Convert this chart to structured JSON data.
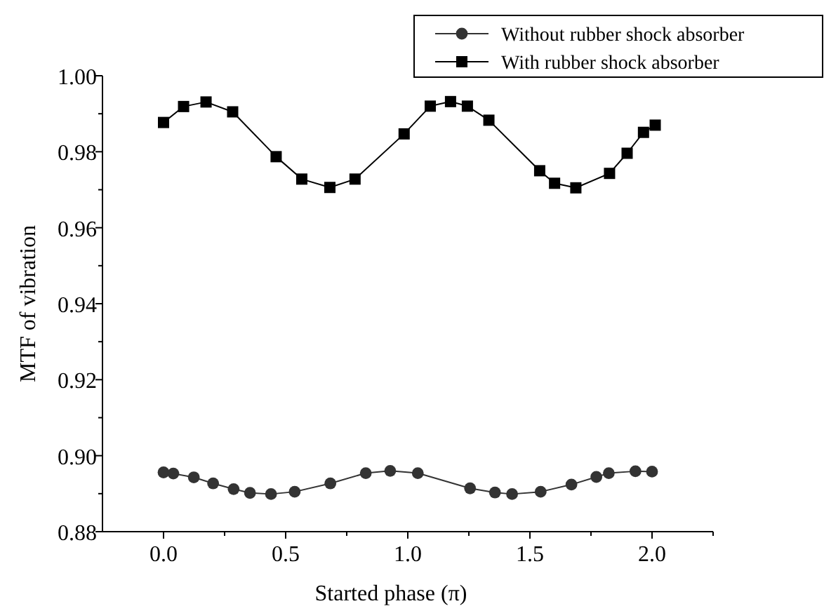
{
  "chart_data": {
    "type": "line",
    "xlabel": "Started phase (π)",
    "ylabel": "MTF of vibration",
    "xlim": [
      -0.25,
      2.25
    ],
    "ylim": [
      0.88,
      1.0
    ],
    "xticks": [
      {
        "value": 0,
        "label": "0.0"
      },
      {
        "value": 0.25,
        "label": null
      },
      {
        "value": 0.5,
        "label": "0.5"
      },
      {
        "value": 0.75,
        "label": null
      },
      {
        "value": 1,
        "label": "1.0"
      },
      {
        "value": 1.25,
        "label": null
      },
      {
        "value": 1.5,
        "label": "1.5"
      },
      {
        "value": 1.75,
        "label": null
      },
      {
        "value": 2,
        "label": "2.0"
      },
      {
        "value": 2.25,
        "label": null
      }
    ],
    "yticks": [
      {
        "value": 0.88,
        "label": "0.88"
      },
      {
        "value": 0.89,
        "label": null
      },
      {
        "value": 0.9,
        "label": "0.90"
      },
      {
        "value": 0.91,
        "label": null
      },
      {
        "value": 0.92,
        "label": "0.92"
      },
      {
        "value": 0.93,
        "label": null
      },
      {
        "value": 0.94,
        "label": "0.94"
      },
      {
        "value": 0.95,
        "label": null
      },
      {
        "value": 0.96,
        "label": "0.96"
      },
      {
        "value": 0.97,
        "label": null
      },
      {
        "value": 0.98,
        "label": "0.98"
      },
      {
        "value": 0.99,
        "label": null
      },
      {
        "value": 1.0,
        "label": "1.00"
      }
    ],
    "grid": false,
    "legend": "top right",
    "line_style": "solid",
    "series": [
      {
        "name": "Without rubber shock absorber",
        "color": "#333333",
        "marker": "circle",
        "x": [
          0.0,
          0.04,
          0.124,
          0.203,
          0.287,
          0.354,
          0.44,
          0.537,
          0.683,
          0.828,
          0.928,
          1.041,
          1.255,
          1.357,
          1.427,
          1.544,
          1.67,
          1.772,
          1.823,
          1.932,
          2.0
        ],
        "values": [
          0.8956,
          0.8953,
          0.8943,
          0.8927,
          0.8912,
          0.8902,
          0.8899,
          0.8905,
          0.8927,
          0.8954,
          0.896,
          0.8954,
          0.8914,
          0.8903,
          0.8899,
          0.8905,
          0.8924,
          0.8944,
          0.8954,
          0.8959,
          0.8958
        ]
      },
      {
        "name": "With rubber shock absorber",
        "color": "#000000",
        "marker": "square",
        "x": [
          0.0,
          0.082,
          0.174,
          0.283,
          0.461,
          0.566,
          0.681,
          0.784,
          0.985,
          1.092,
          1.175,
          1.244,
          1.332,
          1.54,
          1.601,
          1.688,
          1.826,
          1.898,
          1.965,
          2.013
        ],
        "values": [
          0.9877,
          0.9919,
          0.9931,
          0.9905,
          0.9787,
          0.9728,
          0.9706,
          0.9728,
          0.9847,
          0.992,
          0.9932,
          0.992,
          0.9883,
          0.975,
          0.9717,
          0.9705,
          0.9743,
          0.9796,
          0.9851,
          0.987
        ]
      }
    ]
  }
}
